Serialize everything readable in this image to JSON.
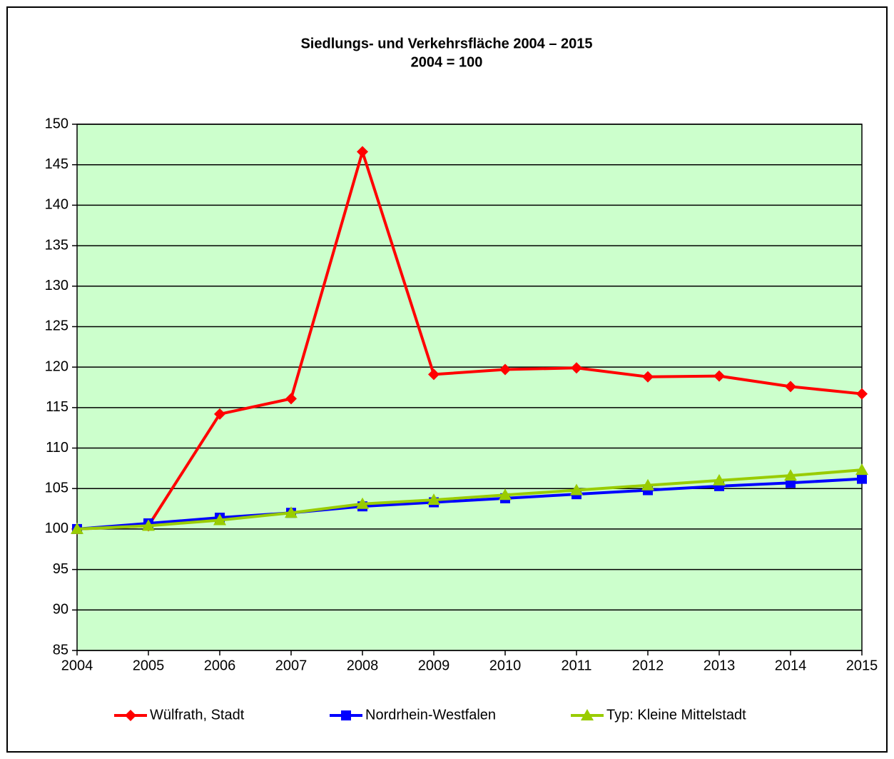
{
  "chart_data": {
    "type": "line",
    "title": "Siedlungs- und Verkehrsfläche 2004 – 2015",
    "subtitle": "2004 = 100",
    "x": [
      2004,
      2005,
      2006,
      2007,
      2008,
      2009,
      2010,
      2011,
      2012,
      2013,
      2014,
      2015
    ],
    "xlim": [
      2004,
      2015
    ],
    "xticks": [
      2004,
      2005,
      2006,
      2007,
      2008,
      2009,
      2010,
      2011,
      2012,
      2013,
      2014,
      2015
    ],
    "ylim": [
      85,
      150
    ],
    "yticks": [
      85,
      90,
      95,
      100,
      105,
      110,
      115,
      120,
      125,
      130,
      135,
      140,
      145,
      150
    ],
    "grid": true,
    "legend": "bottom",
    "plot_background": "#ccffcc",
    "series": [
      {
        "name": "Wülfrath, Stadt",
        "color": "#ff0000",
        "marker": "diamond",
        "values": [
          100,
          100.4,
          114.2,
          116.1,
          146.6,
          119.1,
          119.7,
          119.9,
          118.8,
          118.9,
          117.6,
          116.7
        ]
      },
      {
        "name": "Nordrhein-Westfalen",
        "color": "#0000ff",
        "marker": "square",
        "values": [
          100,
          100.7,
          101.4,
          102.0,
          102.8,
          103.3,
          103.8,
          104.3,
          104.8,
          105.3,
          105.7,
          106.2
        ]
      },
      {
        "name": "Typ: Kleine Mittelstadt",
        "color": "#99cc00",
        "marker": "triangle",
        "values": [
          100,
          100.4,
          101.1,
          102.0,
          103.1,
          103.6,
          104.2,
          104.8,
          105.4,
          106.0,
          106.6,
          107.3
        ]
      }
    ]
  }
}
